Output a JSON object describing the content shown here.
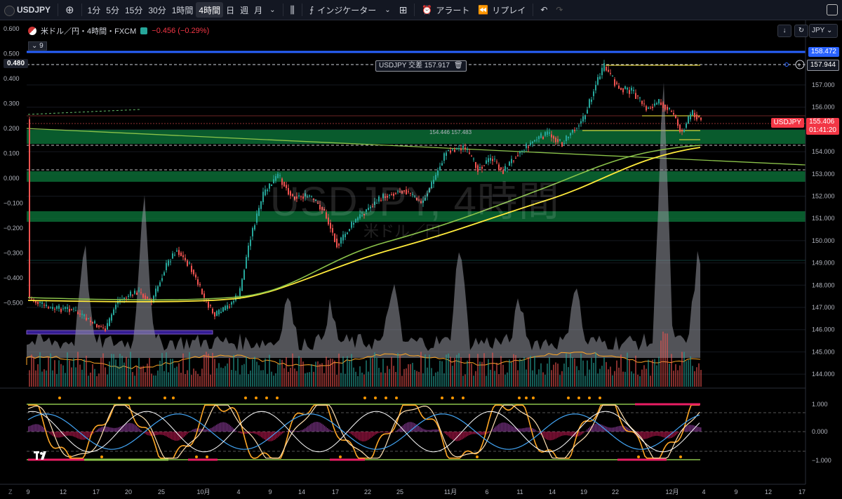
{
  "toolbar": {
    "symbol": "USDJPY",
    "intervals": [
      "1分",
      "5分",
      "15分",
      "30分",
      "1時間",
      "4時間",
      "日",
      "週",
      "月"
    ],
    "active_interval": "4時間",
    "indicators_label": "インジケーター",
    "alert_label": "アラート",
    "replay_label": "リプレイ"
  },
  "legend": {
    "title": "米ドル／円・4時間・FXCM",
    "change": "−0.456 (−0.29%)",
    "ma_tag": "9"
  },
  "currency": "JPY",
  "alert_line": {
    "label": "USDJPY 交差 157.917",
    "right_value": "157.944",
    "left_value": "0.480"
  },
  "price_labels": {
    "top_line": "158.472",
    "current_symbol": "USDJPY",
    "current_price": "155.406",
    "countdown": "01:41:20"
  },
  "watermark": {
    "line1": "USDJPY, 4時間",
    "line2": "米ドル／円"
  },
  "left_axis": [
    "0.600",
    "0.500",
    "0.400",
    "0.300",
    "0.200",
    "0.100",
    "0.000",
    "−0.100",
    "−0.200",
    "−0.300",
    "−0.400",
    "−0.500"
  ],
  "right_axis": [
    "157.000",
    "156.000",
    "155.000",
    "154.000",
    "153.000",
    "152.000",
    "151.000",
    "150.000",
    "149.000",
    "148.000",
    "147.000",
    "146.000",
    "145.000",
    "144.000"
  ],
  "osc_axis": [
    "1.000",
    "0.000",
    "−1.000"
  ],
  "time_axis": [
    "9",
    "12",
    "17",
    "20",
    "25",
    "10月",
    "4",
    "9",
    "14",
    "17",
    "22",
    "25",
    "11月",
    "6",
    "11",
    "14",
    "19",
    "22",
    "12月",
    "4",
    "9",
    "12",
    "17"
  ],
  "misc": {
    "z_label": "Z",
    "near_lines_text": "154.446 157.483"
  },
  "colors": {
    "bull": "#26a69a",
    "bear": "#ef5350",
    "ma_green": "#8bc34a",
    "ma_yellow": "#ffeb3b",
    "zone": "#0b6b35",
    "line_blue": "#2962ff"
  }
}
